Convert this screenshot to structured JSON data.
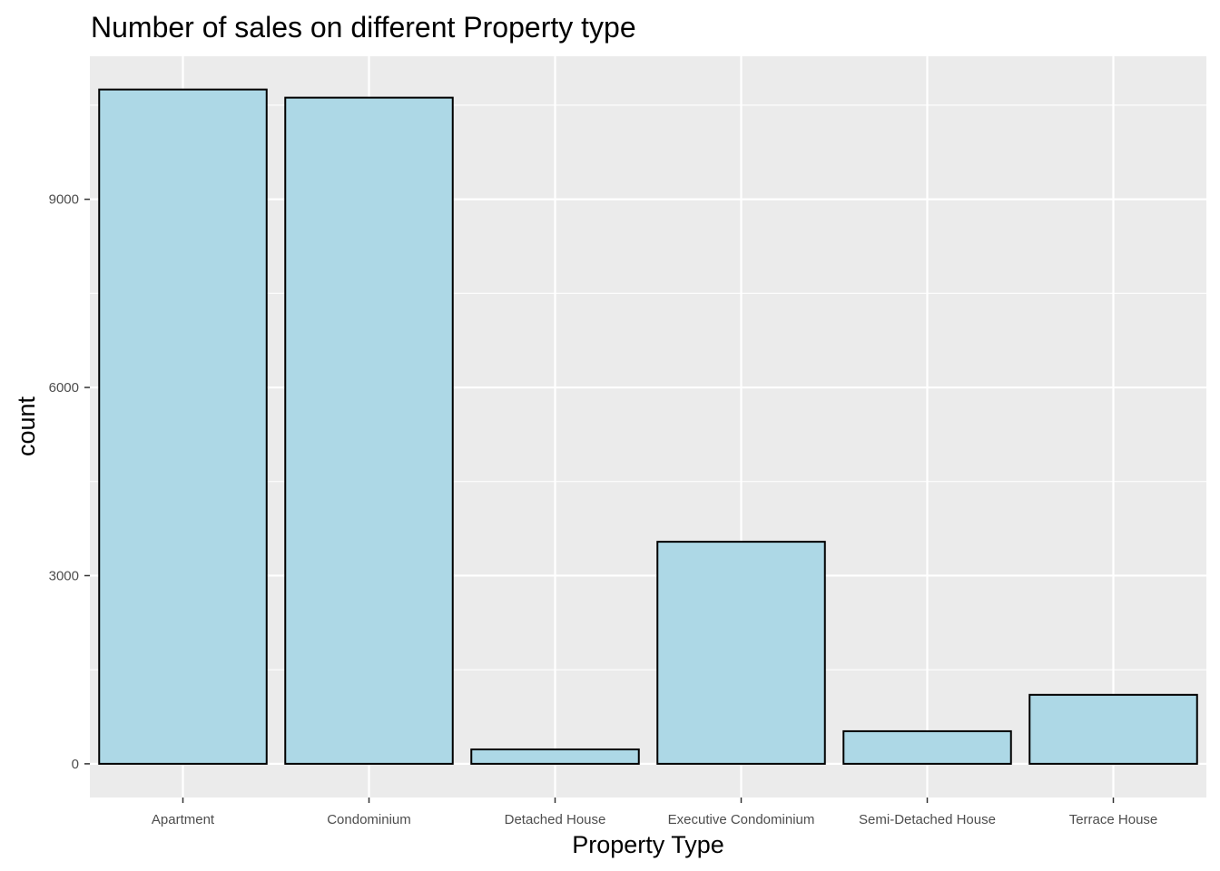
{
  "chart_data": {
    "type": "bar",
    "title": "Number of sales on different Property type",
    "xlabel": "Property Type",
    "ylabel": "count",
    "categories": [
      "Apartment",
      "Condominium",
      "Detached House",
      "Executive Condominium",
      "Semi-Detached House",
      "Terrace House"
    ],
    "values": [
      10750,
      10620,
      230,
      3540,
      520,
      1100
    ],
    "yticks": [
      0,
      3000,
      6000,
      9000
    ],
    "ytick_labels": [
      "0",
      "3000",
      "6000",
      "9000"
    ],
    "ylim": [
      -537,
      11280
    ],
    "grid": true,
    "legend": "none",
    "colors": {
      "bar_fill": "#ADD8E6",
      "bar_stroke": "#000000",
      "panel_bg": "#EBEBEB",
      "grid": "#FFFFFF"
    }
  }
}
